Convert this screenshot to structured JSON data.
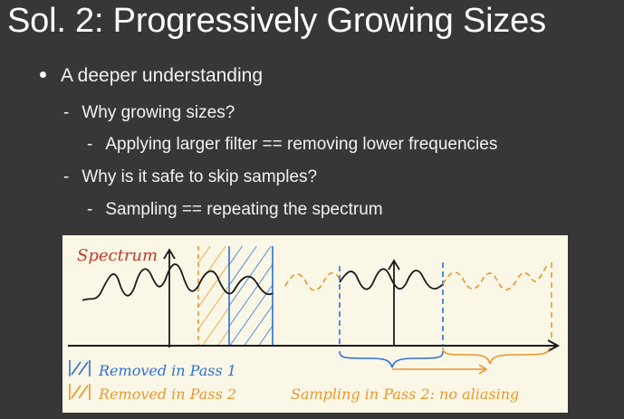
{
  "slide": {
    "title": "Sol. 2: Progressively Growing Sizes",
    "bullet": "A deeper understanding",
    "sub1": "Why growing sizes?",
    "sub1_detail": "Applying larger filter == removing lower frequencies",
    "sub2": "Why is it safe to skip samples?",
    "sub2_detail": "Sampling == repeating the spectrum",
    "dash": "-"
  },
  "figure": {
    "spectrum_label": "Spectrum",
    "legend_blue": "Removed in Pass 1",
    "legend_orange": "Removed in Pass 2",
    "caption": "Sampling in Pass 2: no aliasing",
    "colors": {
      "ink": "#1a1a1a",
      "red": "#c0392b",
      "blue": "#2e6fd6",
      "orange": "#e8962e",
      "paper": "#fbf7e6",
      "background": "#373737"
    }
  }
}
